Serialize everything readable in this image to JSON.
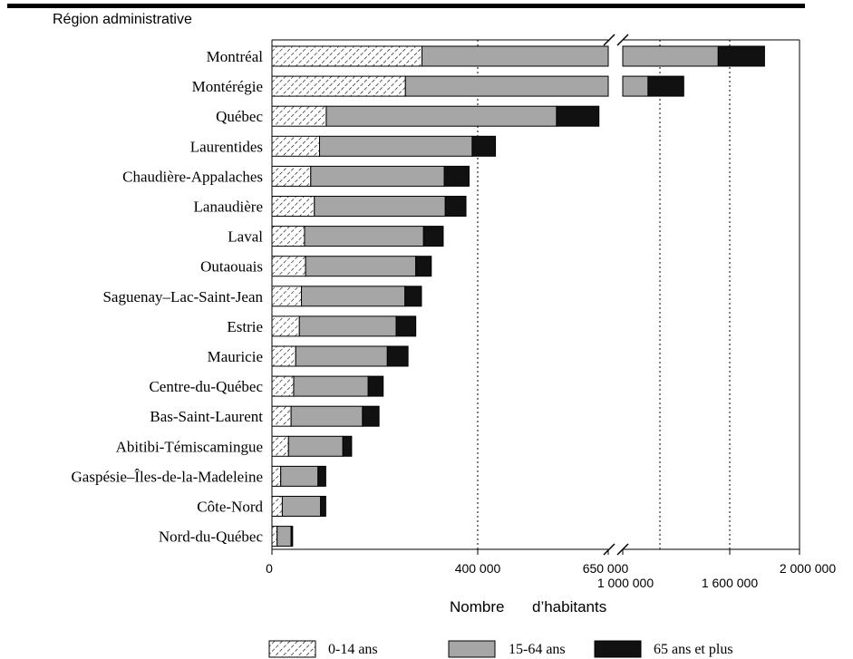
{
  "chart_data": {
    "type": "bar",
    "stacked": true,
    "orientation": "horizontal",
    "ylabel": "Région administrative",
    "xlabel_parts": [
      "Nombre",
      "d’habitants"
    ],
    "axis_break": true,
    "x_ticks_left": [
      "0",
      "400 000",
      "650 000"
    ],
    "x_ticks_right": [
      "1 000 000",
      "1 600 000",
      "2 000 000"
    ],
    "categories": [
      "Montréal",
      "Montérégie",
      "Québec",
      "Laurentides",
      "Chaudière-Appalaches",
      "Lanaudière",
      "Laval",
      "Outaouais",
      "Saguenay–Lac-Saint-Jean",
      "Estrie",
      "Mauricie",
      "Centre-du-Québec",
      "Bas-Saint-Laurent",
      "Abitibi-Témiscamingue",
      "Gaspésie–Îles-de-la-Madeleine",
      "Côte-Nord",
      "Nord-du-Québec"
    ],
    "series": [
      {
        "name": "0-14 ans",
        "pattern": "hatch",
        "values": [
          290000,
          258000,
          105000,
          92000,
          75000,
          82000,
          63000,
          65000,
          57000,
          53000,
          46000,
          42000,
          37000,
          32000,
          17000,
          20000,
          10000
        ]
      },
      {
        "name": "15-64 ans",
        "color": "#a6a6a6",
        "values": [
          1250000,
          885000,
          445000,
          295000,
          258000,
          253000,
          230000,
          213000,
          200000,
          187000,
          177000,
          144000,
          138000,
          105000,
          72000,
          74000,
          27000
        ]
      },
      {
        "name": "65 ans et plus",
        "color": "#111111",
        "values": [
          262000,
          202000,
          82000,
          45000,
          48000,
          40000,
          38000,
          30000,
          32000,
          38000,
          40000,
          29000,
          32000,
          17000,
          15000,
          10000,
          3000
        ]
      }
    ],
    "legend_position": "bottom",
    "grid": "dotted vertical lines at 400 000, 1 200 000 and 1 600 000"
  }
}
